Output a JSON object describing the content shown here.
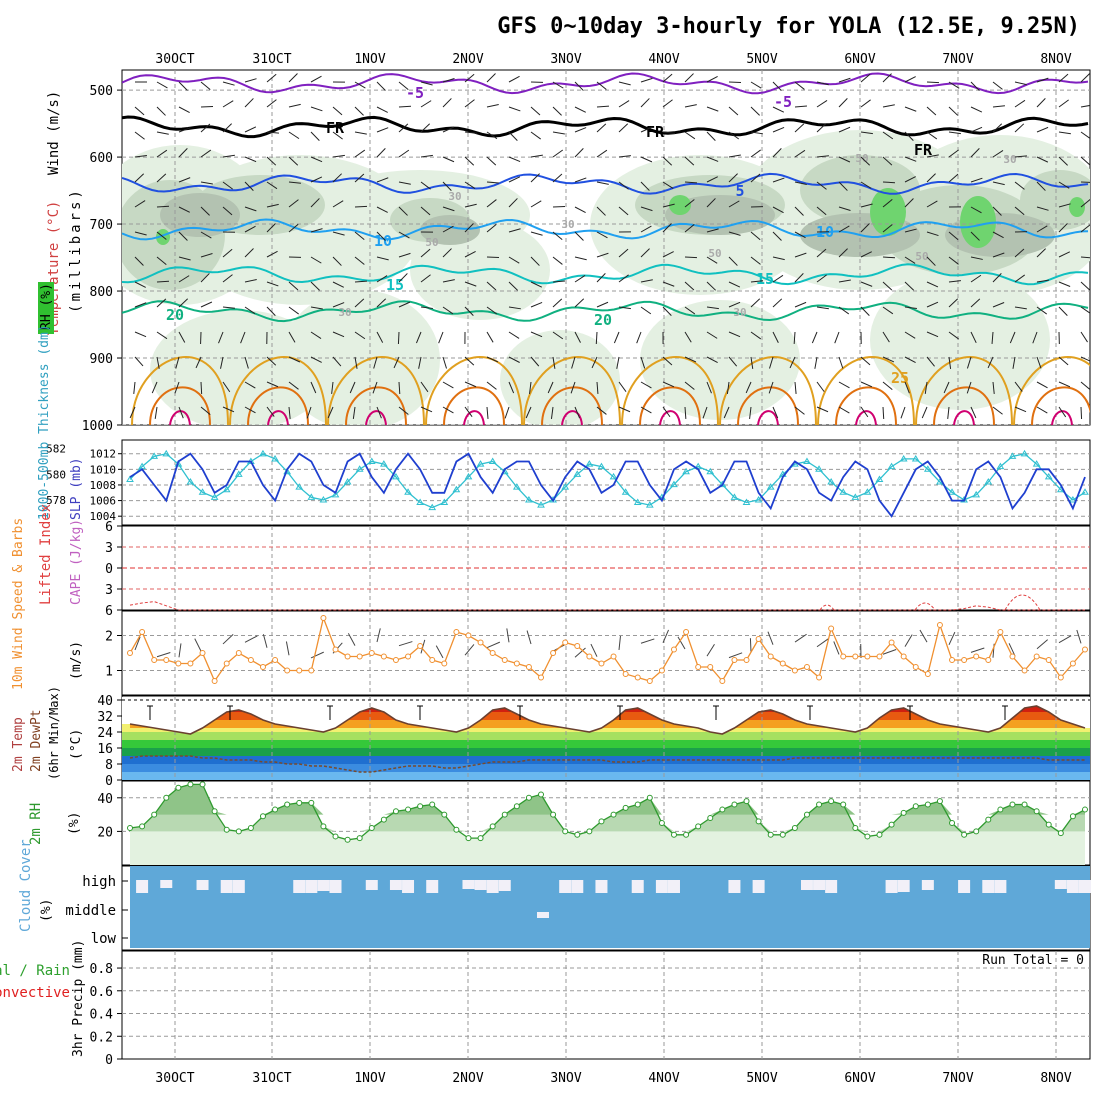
{
  "title": "GFS 0~10day 3-hourly for YOLA (12.5E, 9.25N)",
  "date_labels": [
    "30OCT",
    "31OCT",
    "1NOV",
    "2NOV",
    "3NOV",
    "4NOV",
    "5NOV",
    "6NOV",
    "7NOV",
    "8NOV"
  ],
  "colors": {
    "grid": "#9a9a9a",
    "rh_light": "#e4f0e2",
    "rh_mid": "#c7d9c4",
    "rh_dark": "#b3c2b1",
    "rh_bright": "#6fd46f",
    "temp_m5": "#8020c0",
    "temp_fr": "#000000",
    "temp_5": "#2050e0",
    "temp_10": "#20a0f0",
    "temp_15": "#10c0c0",
    "temp_20": "#10b080",
    "temp_25": "#e0a020",
    "temp_30": "#e07010",
    "temp_35": "#d00070",
    "slp": "#1f3fcf",
    "thickness": "#30c0d0",
    "lifted_index": "#e04040",
    "cape": "#c060c0",
    "wind10": "#f09030",
    "dewpt": "#7a4a2a",
    "rh2m": "#2f9a2f",
    "cloud": "#5fa8d8",
    "cloud_gap": "#f2f0f8",
    "precip_total": "#2ea02e",
    "precip_conv": "#e02020"
  },
  "panels": {
    "upper_air": {
      "labels": {
        "wind": "Wind (m/s)",
        "temperature": "Temperature (°C)",
        "rh": "RH (%)",
        "units": "(millibars)"
      },
      "legend_rh": "RH (%)"
    },
    "slp_thickness": {
      "label_slp": "SLP (mb)",
      "label_thk": "1000-500mb Thickness (dm)"
    },
    "stability": {
      "label_li": "Lifted Index",
      "label_cape": "CAPE (J/kg)"
    },
    "wind10": {
      "label": "10m Wind Speed & Barbs",
      "units": "(m/s)"
    },
    "temp2m": {
      "label1": "2m Temp",
      "label2": "2m DewPt",
      "label3": "(6hr Min/Max)",
      "units": "(°C)"
    },
    "rh2m": {
      "label": "2m RH",
      "units": "(%)"
    },
    "cloud": {
      "label": "Cloud Cover",
      "units": "(%)"
    },
    "precip": {
      "label": "3hr Precip (mm)",
      "legend_total": "Total / Rain",
      "legend_conv": "Convective",
      "run_total": "Run Total = 0"
    }
  },
  "chart_data": [
    {
      "type": "contour",
      "title": "GFS 0~10day 3-hourly for YOLA (12.5E, 9.25N)",
      "ylabel": "(millibars)",
      "y_ticks": [
        500,
        600,
        700,
        800,
        900,
        1000
      ],
      "ylim": [
        1000,
        470
      ],
      "contour_labels": [
        "-5",
        "FR",
        "5",
        "10",
        "15",
        "20",
        "25",
        "30",
        "50"
      ],
      "isotherms": [
        {
          "name": "-5",
          "color_key": "temp_m5",
          "pressure": 490
        },
        {
          "name": "FR",
          "color_key": "temp_fr",
          "pressure": 555
        },
        {
          "name": "5",
          "color_key": "temp_5",
          "pressure": 640
        },
        {
          "name": "10",
          "color_key": "temp_10",
          "pressure": 708
        },
        {
          "name": "15",
          "color_key": "temp_15",
          "pressure": 775
        },
        {
          "name": "20",
          "color_key": "temp_20",
          "pressure": 830
        }
      ]
    },
    {
      "type": "line",
      "title": "SLP and 1000-500mb Thickness",
      "y_ticks_left": [
        578,
        580,
        582
      ],
      "y_ticks_right": [
        1004,
        1006,
        1008,
        1010,
        1012
      ],
      "series": [
        {
          "name": "SLP (mb)",
          "values": [
            1009,
            1010,
            1008,
            1006,
            1011,
            1012,
            1010,
            1007,
            1008,
            1011,
            1011,
            1008,
            1006,
            1010,
            1012,
            1011,
            1008,
            1007,
            1011,
            1012,
            1009,
            1007,
            1010,
            1012,
            1010,
            1007,
            1007,
            1011,
            1012,
            1009,
            1007,
            1010,
            1011,
            1011,
            1008,
            1006,
            1009,
            1011,
            1010,
            1007,
            1008,
            1011,
            1011,
            1008,
            1006,
            1010,
            1011,
            1010,
            1007,
            1008,
            1011,
            1011,
            1007,
            1005,
            1009,
            1011,
            1010,
            1007,
            1006,
            1009,
            1011,
            1010,
            1006,
            1004,
            1007,
            1010,
            1011,
            1009,
            1006,
            1006,
            1010,
            1011,
            1009,
            1005,
            1007,
            1010,
            1010,
            1008,
            1005,
            1009
          ]
        },
        {
          "name": "1000-500mb Thickness (dm)",
          "values": [
            579.6,
            580.6,
            581.4,
            581.6,
            580.8,
            579.4,
            578.6,
            578.2,
            578.8,
            580,
            581,
            581.6,
            581.2,
            580.2,
            579,
            578.2,
            578,
            578.4,
            579.4,
            580.4,
            581,
            580.8,
            579.8,
            578.6,
            577.8,
            577.4,
            577.8,
            578.8,
            579.8,
            580.8,
            581,
            580.2,
            579,
            578,
            577.6,
            578,
            579,
            580,
            580.8,
            580.6,
            579.8,
            578.6,
            577.8,
            577.6,
            578.2,
            579.2,
            580.2,
            580.6,
            580.2,
            579.2,
            578.2,
            577.8,
            578,
            579,
            580,
            580.8,
            581,
            580.4,
            579.4,
            578.6,
            578.2,
            578.6,
            579.6,
            580.6,
            581.2,
            581.2,
            580.4,
            579.4,
            578.6,
            578,
            578.4,
            579.4,
            580.6,
            581.4,
            581.6,
            580.8,
            579.8,
            578.8,
            578,
            578.6
          ]
        }
      ]
    },
    {
      "type": "line",
      "title": "Lifted Index / CAPE",
      "y_ticks": [
        -6,
        -3,
        0,
        3,
        6
      ],
      "series": [
        {
          "name": "Lifted Index",
          "values": [
            5.3,
            5,
            4.8,
            5.4,
            6,
            6,
            6,
            6,
            6,
            6,
            6,
            6,
            6,
            6,
            6,
            6,
            6,
            6,
            6,
            6,
            6,
            6,
            6,
            6,
            6,
            6,
            6,
            6,
            6,
            6,
            6,
            6,
            6,
            6,
            6,
            6,
            6,
            6,
            6,
            6,
            6,
            6,
            6,
            6,
            6,
            6,
            6,
            6,
            6,
            6,
            6,
            6,
            6,
            6,
            6,
            6,
            6,
            6,
            6,
            6,
            6,
            6,
            6,
            6,
            6,
            6,
            6,
            6,
            6,
            5.8,
            5.4,
            5.6,
            6,
            6,
            6,
            6,
            6,
            6,
            6,
            6
          ]
        }
      ]
    },
    {
      "type": "line",
      "title": "10m Wind Speed",
      "y_ticks": [
        1,
        2
      ],
      "series": [
        {
          "name": "10m Wind Speed (m/s)",
          "values": [
            1.5,
            2.1,
            1.3,
            1.3,
            1.2,
            1.2,
            1.5,
            0.7,
            1.2,
            1.5,
            1.3,
            1.1,
            1.3,
            1.0,
            1.0,
            1.0,
            2.5,
            1.6,
            1.4,
            1.4,
            1.5,
            1.4,
            1.3,
            1.4,
            1.7,
            1.3,
            1.2,
            2.1,
            2.0,
            1.8,
            1.5,
            1.3,
            1.2,
            1.1,
            0.8,
            1.5,
            1.8,
            1.7,
            1.4,
            1.2,
            1.4,
            0.9,
            0.8,
            0.7,
            1.0,
            1.6,
            2.1,
            1.1,
            1.1,
            0.7,
            1.3,
            1.3,
            1.9,
            1.4,
            1.2,
            1.0,
            1.1,
            0.8,
            2.2,
            1.4,
            1.4,
            1.4,
            1.4,
            1.8,
            1.4,
            1.1,
            0.9,
            2.3,
            1.3,
            1.3,
            1.4,
            1.3,
            2.1,
            1.4,
            1.0,
            1.4,
            1.3,
            0.8,
            1.2,
            1.6
          ]
        }
      ]
    },
    {
      "type": "area",
      "title": "2m Temperature and Dew Point",
      "y_ticks": [
        0,
        8,
        16,
        24,
        32,
        40
      ],
      "series": [
        {
          "name": "2m Temp (°C)",
          "values": [
            28,
            27,
            26,
            25,
            24,
            23,
            26,
            30,
            34,
            35,
            33,
            30,
            28,
            27,
            26,
            25,
            24,
            26,
            30,
            34,
            36,
            34,
            30,
            28,
            27,
            26,
            25,
            24,
            26,
            30,
            35,
            36,
            33,
            30,
            28,
            27,
            26,
            25,
            24,
            26,
            30,
            35,
            36,
            33,
            30,
            28,
            27,
            26,
            24,
            23,
            26,
            30,
            34,
            35,
            33,
            30,
            28,
            27,
            26,
            25,
            24,
            26,
            31,
            35,
            36,
            33,
            30,
            28,
            27,
            26,
            25,
            24,
            26,
            31,
            36,
            37,
            34,
            30,
            28,
            26
          ]
        },
        {
          "name": "2m DewPt (°C)",
          "values": [
            11,
            12,
            12,
            12,
            12,
            12,
            11,
            11,
            10,
            10,
            10,
            9,
            9,
            8,
            8,
            7,
            7,
            6,
            5,
            4,
            4,
            5,
            6,
            7,
            7,
            7,
            6,
            6,
            7,
            8,
            9,
            9,
            9,
            10,
            10,
            10,
            10,
            10,
            10,
            10,
            9,
            9,
            9,
            10,
            10,
            10,
            10,
            10,
            10,
            10,
            10,
            10,
            10,
            10,
            10,
            11,
            11,
            11,
            11,
            11,
            11,
            11,
            11,
            11,
            11,
            11,
            11,
            11,
            11,
            11,
            11,
            11,
            11,
            11,
            11,
            11,
            10,
            10,
            10,
            10
          ]
        }
      ]
    },
    {
      "type": "area",
      "title": "2m RH",
      "y_ticks": [
        20,
        40
      ],
      "series": [
        {
          "name": "2m RH (%)",
          "values": [
            22,
            23,
            30,
            40,
            46,
            48,
            48,
            32,
            21,
            20,
            22,
            29,
            33,
            36,
            37,
            37,
            23,
            17,
            15,
            16,
            22,
            27,
            32,
            33,
            35,
            36,
            30,
            21,
            16,
            16,
            23,
            30,
            35,
            40,
            42,
            30,
            20,
            18,
            20,
            26,
            30,
            34,
            36,
            40,
            25,
            18,
            18,
            23,
            28,
            33,
            36,
            38,
            26,
            18,
            18,
            22,
            30,
            36,
            38,
            36,
            22,
            17,
            18,
            24,
            31,
            35,
            36,
            38,
            25,
            18,
            20,
            27,
            33,
            36,
            36,
            32,
            24,
            19,
            29,
            33
          ]
        }
      ]
    },
    {
      "type": "bar",
      "title": "Cloud Cover",
      "y_ticks": [
        "high",
        "middle",
        "low"
      ]
    },
    {
      "type": "bar",
      "title": "3hr Precip (mm)",
      "y_ticks": [
        0,
        0.2,
        0.4,
        0.6,
        0.8
      ],
      "series": [
        {
          "name": "Total / Rain",
          "values": []
        },
        {
          "name": "Convective",
          "values": []
        }
      ],
      "run_total": 0
    }
  ]
}
